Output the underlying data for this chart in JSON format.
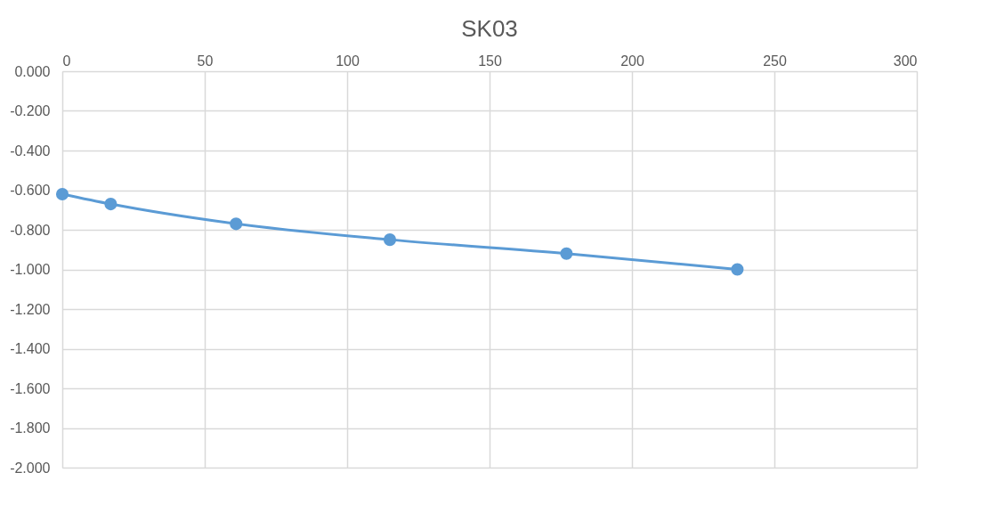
{
  "chart_data": {
    "type": "line",
    "title": "SK03",
    "x": [
      0,
      17,
      61,
      115,
      177,
      237
    ],
    "series": [
      {
        "color": "#5b9bd5",
        "values": [
          -0.62,
          -0.67,
          -0.77,
          -0.85,
          -0.92,
          -1.0
        ]
      }
    ],
    "xlim": [
      0,
      300
    ],
    "xticks": [
      0,
      50,
      100,
      150,
      200,
      250,
      300
    ],
    "ylim": [
      -2,
      0
    ],
    "yticks": [
      {
        "value": 0,
        "label": "0.000"
      },
      {
        "value": -0.2,
        "label": "-0.200"
      },
      {
        "value": -0.4,
        "label": "-0.400"
      },
      {
        "value": -0.6,
        "label": "-0.600"
      },
      {
        "value": -0.8,
        "label": "-0.800"
      },
      {
        "value": -1.0,
        "label": "-1.000"
      },
      {
        "value": -1.2,
        "label": "-1.200"
      },
      {
        "value": -1.4,
        "label": "-1.400"
      },
      {
        "value": -1.6,
        "label": "-1.600"
      },
      {
        "value": -1.8,
        "label": "-1.800"
      },
      {
        "value": -2.0,
        "label": "-2.000"
      }
    ],
    "grid": true,
    "marker": "circle",
    "line_style": "solid"
  }
}
